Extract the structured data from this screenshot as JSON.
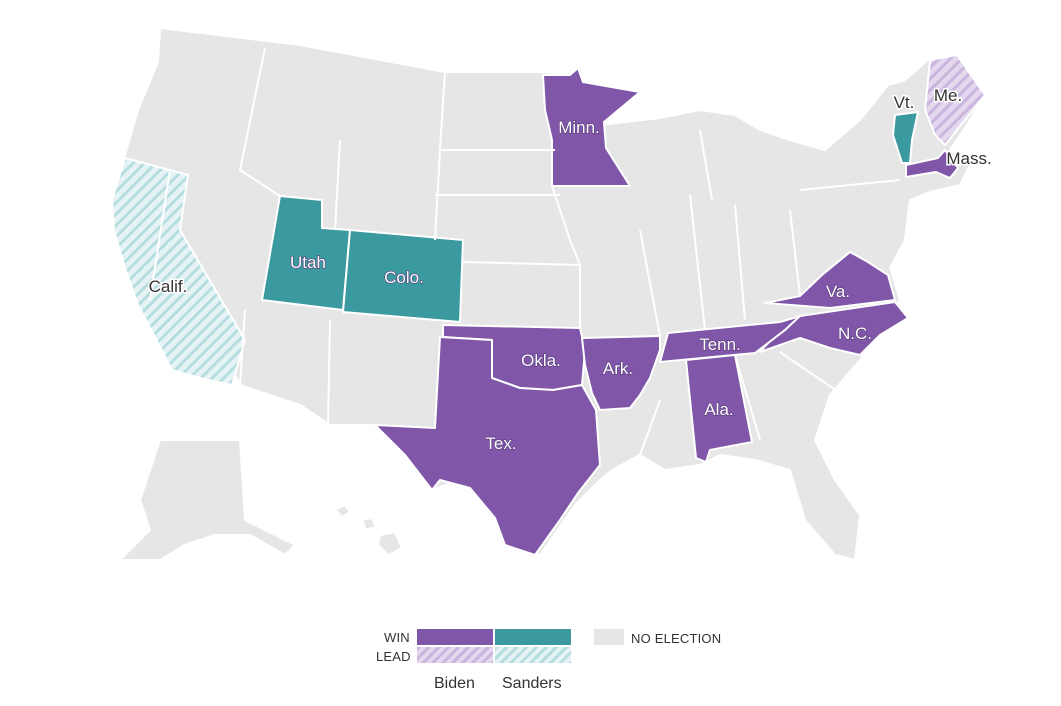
{
  "colors": {
    "biden_win": "#7f56a8",
    "sanders_win": "#3a9aa0",
    "no_election": "#e6e6e6",
    "biden_lead_stripe": "#c9b5dd",
    "sanders_lead_stripe": "#b6dde0"
  },
  "states": {
    "minn": {
      "label": "Minn.",
      "status": "biden_win"
    },
    "vt": {
      "label": "Vt.",
      "status": "sanders_win"
    },
    "me": {
      "label": "Me.",
      "status": "biden_lead"
    },
    "mass": {
      "label": "Mass.",
      "status": "biden_win"
    },
    "calif": {
      "label": "Calif.",
      "status": "sanders_lead"
    },
    "utah": {
      "label": "Utah",
      "status": "sanders_win"
    },
    "colo": {
      "label": "Colo.",
      "status": "sanders_win"
    },
    "va": {
      "label": "Va.",
      "status": "biden_win"
    },
    "nc": {
      "label": "N.C.",
      "status": "biden_win"
    },
    "tenn": {
      "label": "Tenn.",
      "status": "biden_win"
    },
    "okla": {
      "label": "Okla.",
      "status": "biden_win"
    },
    "ark": {
      "label": "Ark.",
      "status": "biden_win"
    },
    "ala": {
      "label": "Ala.",
      "status": "biden_win"
    },
    "tex": {
      "label": "Tex.",
      "status": "biden_win"
    }
  },
  "legend": {
    "win_label": "WIN",
    "lead_label": "LEAD",
    "no_election_label": "NO ELECTION",
    "candidate_1": "Biden",
    "candidate_2": "Sanders"
  }
}
